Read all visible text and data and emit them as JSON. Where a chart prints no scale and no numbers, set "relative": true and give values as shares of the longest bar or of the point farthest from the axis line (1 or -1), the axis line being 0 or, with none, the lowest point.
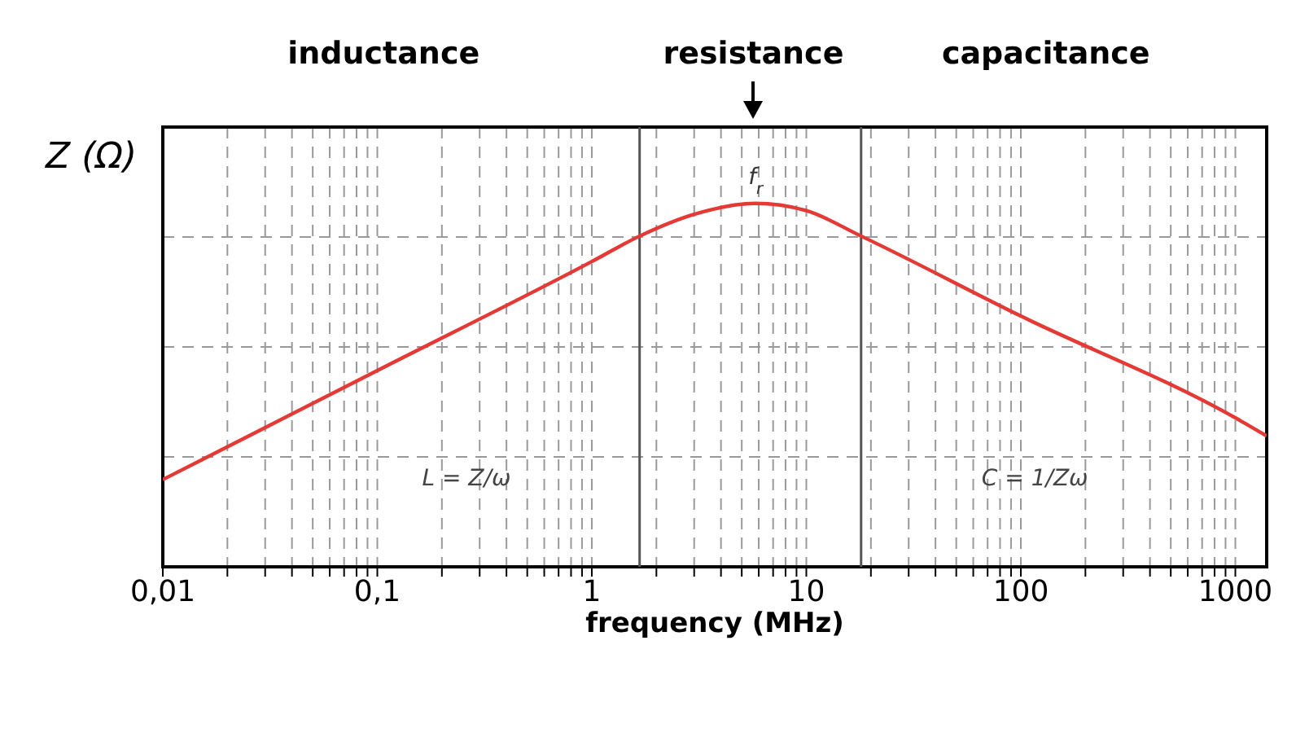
{
  "chart_data": {
    "type": "line",
    "relative": true,
    "xlabel": "frequency (MHz)",
    "ylabel": "Z (Ω)",
    "log": "x",
    "grid": true,
    "marker": "none",
    "line_style": "solid",
    "xlim": [
      0.01,
      1400
    ],
    "xticks": [
      {
        "value": 0.01,
        "label": "0,01"
      },
      {
        "value": 0.02,
        "label": null
      },
      {
        "value": 0.03,
        "label": null
      },
      {
        "value": 0.04,
        "label": null
      },
      {
        "value": 0.05,
        "label": null
      },
      {
        "value": 0.06,
        "label": null
      },
      {
        "value": 0.07,
        "label": null
      },
      {
        "value": 0.08,
        "label": null
      },
      {
        "value": 0.09,
        "label": null
      },
      {
        "value": 0.1,
        "label": "0,1"
      },
      {
        "value": 0.2,
        "label": null
      },
      {
        "value": 0.3,
        "label": null
      },
      {
        "value": 0.4,
        "label": null
      },
      {
        "value": 0.5,
        "label": null
      },
      {
        "value": 0.6,
        "label": null
      },
      {
        "value": 0.7,
        "label": null
      },
      {
        "value": 0.8,
        "label": null
      },
      {
        "value": 0.9,
        "label": null
      },
      1,
      {
        "value": 2,
        "label": null
      },
      {
        "value": 3,
        "label": null
      },
      {
        "value": 4,
        "label": null
      },
      {
        "value": 5,
        "label": null
      },
      {
        "value": 6,
        "label": null
      },
      {
        "value": 7,
        "label": null
      },
      {
        "value": 8,
        "label": null
      },
      {
        "value": 9,
        "label": null
      },
      10,
      {
        "value": 20,
        "label": null
      },
      {
        "value": 30,
        "label": null
      },
      {
        "value": 40,
        "label": null
      },
      {
        "value": 50,
        "label": null
      },
      {
        "value": 60,
        "label": null
      },
      {
        "value": 70,
        "label": null
      },
      {
        "value": 80,
        "label": null
      },
      {
        "value": 90,
        "label": null
      },
      100,
      {
        "value": 200,
        "label": null
      },
      {
        "value": 300,
        "label": null
      },
      {
        "value": 400,
        "label": null
      },
      {
        "value": 500,
        "label": null
      },
      {
        "value": 600,
        "label": null
      },
      {
        "value": 700,
        "label": null
      },
      {
        "value": 800,
        "label": null
      },
      {
        "value": 900,
        "label": null
      },
      1000
    ],
    "x": [
      0.01,
      0.1,
      1,
      1.67,
      3,
      5.8,
      10,
      18,
      100,
      1000,
      1400
    ],
    "series": [
      {
        "color": "#e53935",
        "values": [
          0.24,
          0.54,
          0.84,
          0.91,
          0.97,
          1,
          0.98,
          0.91,
          0.69,
          0.41,
          0.36
        ]
      }
    ],
    "ref_lines": [
      {
        "axis": "x",
        "value": 1.67,
        "color": "#555555",
        "line_style": "solid"
      },
      {
        "axis": "x",
        "value": 18,
        "color": "#555555",
        "line_style": "solid"
      }
    ],
    "annotations": [
      "inductance",
      "resistance",
      "capacitance",
      "L = Z/ω",
      "C = 1/Zω",
      {
        "text": "f$_{r}$",
        "x": 5.8,
        "y": 1
      }
    ]
  }
}
